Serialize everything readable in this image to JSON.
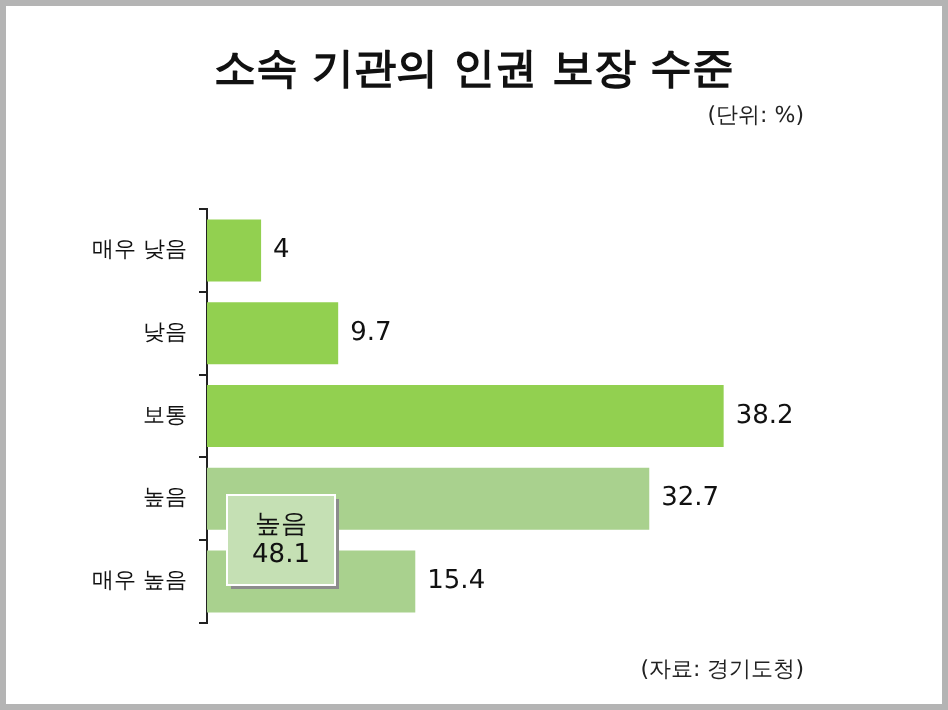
{
  "chart_data": {
    "type": "bar",
    "orientation": "horizontal",
    "title": "소속 기관의 인권 보장 수준",
    "subtitle": "(단위: %)",
    "categories": [
      "매우 낮음",
      "낮음",
      "보통",
      "높음",
      "매우 높음"
    ],
    "values": [
      4,
      9.7,
      38.2,
      32.7,
      15.4
    ],
    "colors": [
      "#92d050",
      "#92d050",
      "#92d050",
      "#a9d18e",
      "#a9d18e"
    ],
    "tick_labels": "y",
    "data_labels": true,
    "grid": false,
    "legend": false,
    "annotations": [
      "높음\n48.1",
      "(자료: 경기도청)"
    ]
  }
}
